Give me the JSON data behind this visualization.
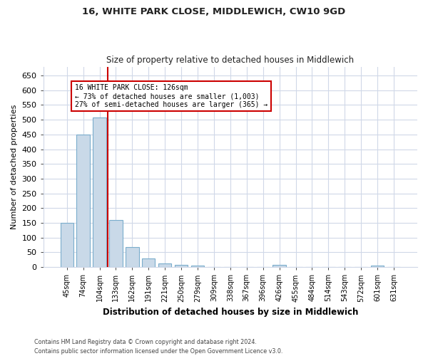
{
  "title1": "16, WHITE PARK CLOSE, MIDDLEWICH, CW10 9GD",
  "title2": "Size of property relative to detached houses in Middlewich",
  "xlabel": "Distribution of detached houses by size in Middlewich",
  "ylabel": "Number of detached properties",
  "categories": [
    "45sqm",
    "74sqm",
    "104sqm",
    "133sqm",
    "162sqm",
    "191sqm",
    "221sqm",
    "250sqm",
    "279sqm",
    "309sqm",
    "338sqm",
    "367sqm",
    "396sqm",
    "426sqm",
    "455sqm",
    "484sqm",
    "514sqm",
    "543sqm",
    "572sqm",
    "601sqm",
    "631sqm"
  ],
  "values": [
    150,
    450,
    507,
    160,
    68,
    30,
    13,
    8,
    5,
    0,
    0,
    0,
    0,
    7,
    0,
    0,
    0,
    0,
    0,
    6,
    0
  ],
  "bar_color": "#c9d9e8",
  "bar_edge_color": "#7aadcc",
  "bar_width": 0.8,
  "red_line_x": 2.5,
  "annotation_line1": "16 WHITE PARK CLOSE: 126sqm",
  "annotation_line2": "← 73% of detached houses are smaller (1,003)",
  "annotation_line3": "27% of semi-detached houses are larger (365) →",
  "ylim": [
    0,
    680
  ],
  "yticks": [
    0,
    50,
    100,
    150,
    200,
    250,
    300,
    350,
    400,
    450,
    500,
    550,
    600,
    650
  ],
  "footnote1": "Contains HM Land Registry data © Crown copyright and database right 2024.",
  "footnote2": "Contains public sector information licensed under the Open Government Licence v3.0.",
  "bg_color": "#ffffff",
  "grid_color": "#d0d8e8",
  "annotation_box_color": "#ffffff",
  "annotation_box_edge": "#cc0000",
  "red_line_color": "#cc0000"
}
